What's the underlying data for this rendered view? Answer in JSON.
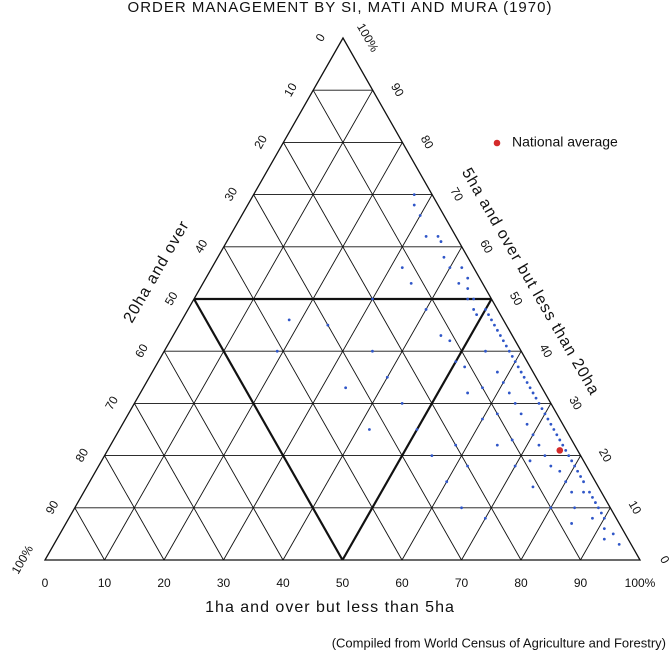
{
  "chart_data": {
    "type": "ternary",
    "title": "ORDER MANAGEMENT BY SI, MATI AND MURA (1970)",
    "a_label": "1ha and over but less than 5ha",
    "b_label": "5ha and over but less than 20ha",
    "c_label": "20ha and over",
    "note": "(Compiled from World Census of Agriculture and Forestry)",
    "aticks": [
      0,
      10,
      20,
      30,
      40,
      50,
      60,
      70,
      80,
      90,
      {
        "value": 100,
        "label": "100%"
      }
    ],
    "bticks": [
      0,
      10,
      20,
      30,
      40,
      50,
      60,
      70,
      80,
      90,
      {
        "value": 100,
        "label": "100%"
      }
    ],
    "cticks": [
      0,
      10,
      20,
      30,
      40,
      50,
      60,
      70,
      80,
      90,
      {
        "value": 100,
        "label": "100%"
      }
    ],
    "emphasized_gridlines": [
      50
    ],
    "grid": true,
    "series": [
      {
        "color": "#2f56c8",
        "values": [
          [
            95,
            3,
            2
          ],
          [
            93,
            5,
            2
          ],
          [
            92,
            4,
            4
          ],
          [
            90,
            8,
            2
          ],
          [
            91,
            6,
            3
          ],
          [
            89,
            9,
            2
          ],
          [
            88,
            10,
            2
          ],
          [
            87,
            11,
            2
          ],
          [
            88,
            8,
            4
          ],
          [
            86,
            12,
            2
          ],
          [
            85,
            13,
            2
          ],
          [
            84,
            13,
            3
          ],
          [
            84,
            10,
            6
          ],
          [
            83,
            15,
            2
          ],
          [
            82,
            16,
            2
          ],
          [
            82,
            13,
            5
          ],
          [
            81,
            17,
            2
          ],
          [
            80,
            18,
            2
          ],
          [
            80,
            15,
            5
          ],
          [
            79,
            19,
            2
          ],
          [
            78,
            20,
            2
          ],
          [
            78,
            17,
            5
          ],
          [
            77,
            21,
            2
          ],
          [
            76,
            22,
            2
          ],
          [
            76,
            18,
            6
          ],
          [
            75,
            23,
            2
          ],
          [
            74,
            24,
            2
          ],
          [
            74,
            20,
            6
          ],
          [
            73,
            25,
            2
          ],
          [
            72,
            26,
            2
          ],
          [
            72,
            22,
            6
          ],
          [
            71,
            27,
            2
          ],
          [
            70,
            28,
            2
          ],
          [
            70,
            24,
            6
          ],
          [
            69,
            29,
            2
          ],
          [
            68,
            30,
            2
          ],
          [
            68,
            26,
            6
          ],
          [
            67,
            31,
            2
          ],
          [
            66,
            32,
            2
          ],
          [
            66,
            28,
            6
          ],
          [
            65,
            33,
            2
          ],
          [
            64,
            34,
            2
          ],
          [
            64,
            30,
            6
          ],
          [
            63,
            35,
            2
          ],
          [
            62,
            36,
            2
          ],
          [
            62,
            32,
            6
          ],
          [
            61,
            37,
            2
          ],
          [
            60,
            38,
            2
          ],
          [
            60,
            34,
            6
          ],
          [
            59,
            39,
            2
          ],
          [
            58,
            40,
            2
          ],
          [
            58,
            36,
            6
          ],
          [
            57,
            41,
            2
          ],
          [
            56,
            42,
            2
          ],
          [
            55,
            43,
            2
          ],
          [
            54,
            44,
            2
          ],
          [
            54,
            40,
            6
          ],
          [
            53,
            45,
            2
          ],
          [
            52,
            46,
            2
          ],
          [
            51,
            47,
            2
          ],
          [
            50,
            48,
            2
          ],
          [
            49,
            47,
            4
          ],
          [
            48,
            48,
            4
          ],
          [
            47,
            50,
            3
          ],
          [
            46,
            50,
            4
          ],
          [
            45,
            52,
            3
          ],
          [
            44,
            54,
            2
          ],
          [
            43,
            53,
            4
          ],
          [
            42,
            56,
            2
          ],
          [
            40,
            56,
            4
          ],
          [
            38,
            58,
            4
          ],
          [
            36,
            61,
            3
          ],
          [
            35,
            62,
            3
          ],
          [
            70,
            18,
            12
          ],
          [
            65,
            22,
            13
          ],
          [
            60,
            27,
            13
          ],
          [
            55,
            32,
            13
          ],
          [
            50,
            38,
            12
          ],
          [
            45,
            43,
            12
          ],
          [
            40,
            48,
            12
          ],
          [
            35,
            53,
            12
          ],
          [
            32,
            56,
            12
          ],
          [
            75,
            14,
            11
          ],
          [
            80,
            10,
            10
          ],
          [
            85,
            7,
            8
          ],
          [
            62,
            28,
            10
          ],
          [
            57,
            33,
            10
          ],
          [
            52,
            37,
            11
          ],
          [
            47,
            42,
            11
          ],
          [
            67,
            23,
            10
          ],
          [
            72,
            19,
            9
          ],
          [
            30,
            50,
            20
          ],
          [
            25,
            45,
            30
          ],
          [
            35,
            40,
            25
          ],
          [
            40,
            35,
            25
          ],
          [
            50,
            25,
            25
          ],
          [
            55,
            20,
            25
          ],
          [
            60,
            15,
            25
          ],
          [
            19,
            40,
            41
          ],
          [
            18,
            46,
            36
          ],
          [
            34,
            33,
            33
          ],
          [
            45,
            30,
            25
          ],
          [
            65,
            10,
            25
          ],
          [
            70,
            8,
            22
          ],
          [
            33,
            62,
            5
          ],
          [
            30,
            66,
            4
          ],
          [
            28,
            68,
            4
          ],
          [
            27,
            70,
            3
          ],
          [
            62,
            18,
            20
          ],
          [
            42,
            25,
            33
          ],
          [
            58,
            22,
            20
          ]
        ]
      },
      {
        "name": "National average",
        "color": "#d42a2a",
        "values": [
          [
            76,
            21,
            3
          ]
        ]
      }
    ]
  }
}
